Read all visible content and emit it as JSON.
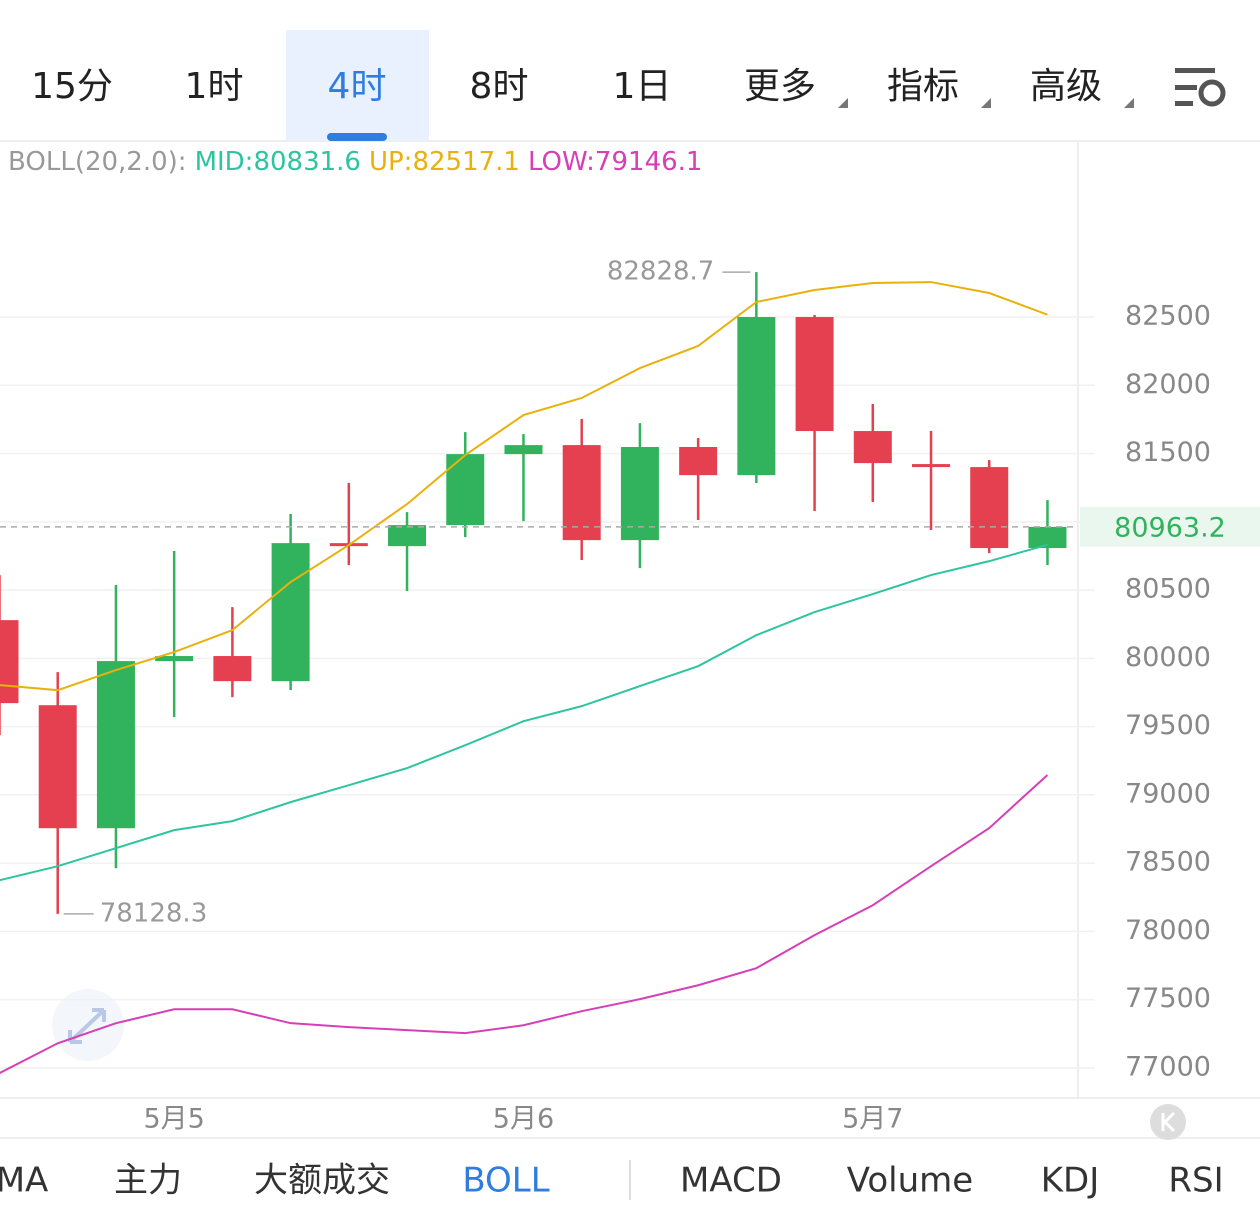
{
  "tabs": {
    "items": [
      "15分",
      "1时",
      "4时",
      "8时",
      "1日",
      "更多",
      "指标",
      "高级"
    ],
    "active": 2
  },
  "chart_data": {
    "type": "candlestick",
    "indicator_label": "BOLL(20,2.0):",
    "categories": [
      null,
      null,
      null,
      "5月5",
      null,
      null,
      null,
      null,
      null,
      "5月6",
      null,
      null,
      null,
      null,
      null,
      "5月7",
      null,
      null,
      null
    ],
    "candles": {
      "up_color": "#30b35c",
      "down_color": "#e5404f",
      "open": [
        80280,
        79657,
        78756,
        79980,
        80017,
        79833,
        80844,
        80822,
        80976,
        81496,
        81562,
        80866,
        81548,
        81342,
        82500,
        81665,
        81423,
        81401,
        80808
      ],
      "high": [
        80610,
        79899,
        80537,
        80786,
        80375,
        81057,
        81284,
        81071,
        81657,
        81642,
        81753,
        81723,
        81614,
        82828.7,
        82515,
        81863,
        81665,
        81452,
        81159
      ],
      "low": [
        79438,
        78128.3,
        78463,
        79570,
        79716,
        79767,
        80683,
        80493,
        80888,
        81005,
        80720,
        80661,
        81013,
        81284,
        81079,
        81145,
        80940,
        80771,
        80683
      ],
      "close": [
        79672,
        78756,
        79980,
        80017,
        79833,
        80844,
        80822,
        80976,
        81496,
        81562,
        80866,
        81548,
        81342,
        82500,
        81665,
        81430,
        81401,
        80808,
        80963.2
      ]
    },
    "series": [
      {
        "label": "MID:80831.6",
        "color": "#2ec4a0",
        "values": [
          78375,
          78478,
          78610,
          78742,
          78808,
          78947,
          79071,
          79196,
          79364,
          79540,
          79650,
          79797,
          79943,
          80170,
          80339,
          80471,
          80610,
          80712,
          80831.6
        ]
      },
      {
        "label": "UP:82517.1",
        "color": "#e8b10c",
        "values": [
          79804,
          79767,
          79914,
          80046,
          80207,
          80559,
          80830,
          81130,
          81489,
          81782,
          81907,
          82126,
          82288,
          82610,
          82698,
          82749,
          82756,
          82676,
          82517.1
        ]
      },
      {
        "label": "LOW:79146.1",
        "color": "#d63fb6",
        "values": [
          76962,
          77181,
          77328,
          77430,
          77430,
          77328,
          77299,
          77277,
          77255,
          77313,
          77416,
          77504,
          77606,
          77731,
          77973,
          78192,
          78478,
          78757,
          79146.1
        ]
      }
    ],
    "ylim": [
      76780,
      83760
    ],
    "yticks": [
      77000,
      77500,
      78000,
      78500,
      79000,
      79500,
      80000,
      80500,
      81000,
      81500,
      82000,
      82500
    ],
    "grid": true
  },
  "bottom_tabs": {
    "items": [
      "MA",
      "主力",
      "大额成交",
      "BOLL",
      "MACD",
      "Volume",
      "KDJ",
      "RSI"
    ],
    "active": 3
  }
}
